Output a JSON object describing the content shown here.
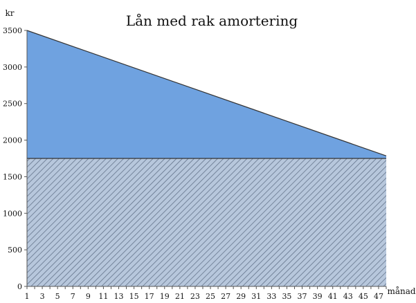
{
  "chart_data": {
    "type": "area",
    "title": "Lån med rak amortering",
    "xlabel": "månad",
    "ylabel": "kr",
    "ylim": [
      0,
      3500
    ],
    "yticks": [
      0,
      500,
      1000,
      1500,
      2000,
      2500,
      3000,
      3500
    ],
    "x": [
      1,
      3,
      5,
      7,
      9,
      11,
      13,
      15,
      17,
      19,
      21,
      23,
      25,
      27,
      29,
      31,
      33,
      35,
      37,
      39,
      41,
      43,
      45,
      47
    ],
    "x_range": [
      1,
      48
    ],
    "series": [
      {
        "values": [
          1750,
          1750
        ],
        "x": [
          1,
          48
        ],
        "fill": "#b7c7dc",
        "hatch": "#5f6f86",
        "pattern": "diagonal-hatch"
      },
      {
        "values": [
          3500,
          1785
        ],
        "x": [
          1,
          48
        ],
        "fill": "#6fa2e0",
        "pattern": "solid"
      }
    ],
    "grid": false,
    "legend": "none",
    "colors": {
      "line": "#333333",
      "axis": "#555555",
      "text": "#111111"
    }
  }
}
